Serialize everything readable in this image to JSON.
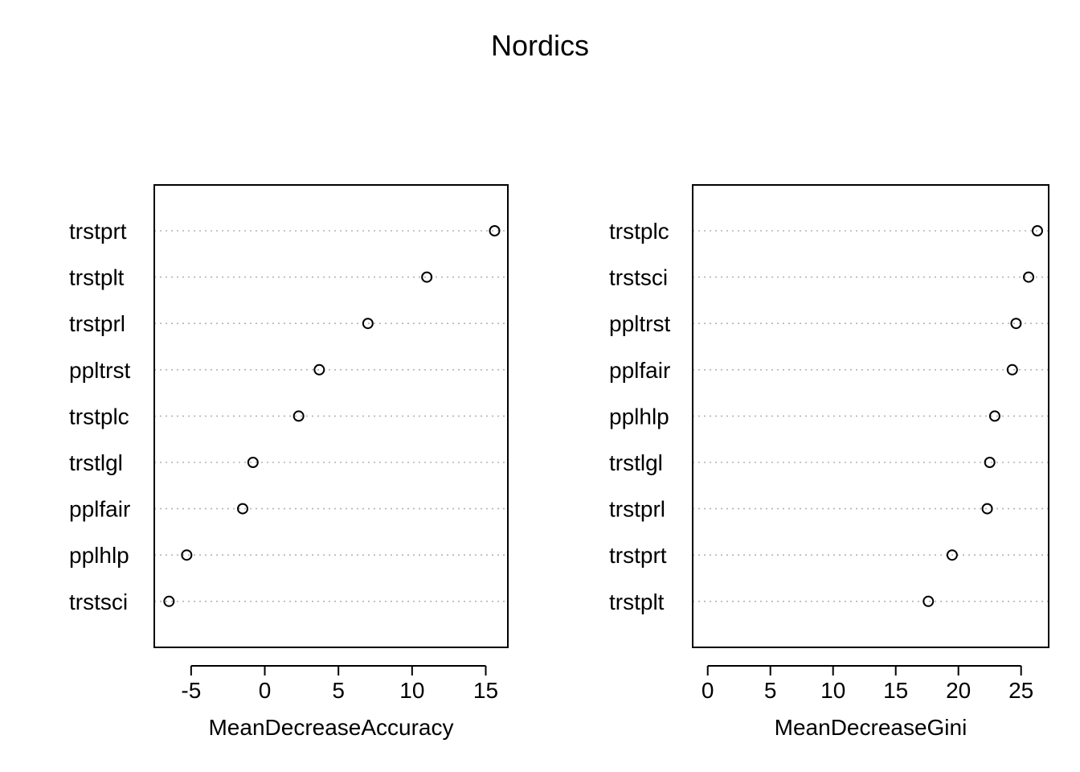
{
  "title": "Nordics",
  "chart_data": [
    {
      "type": "scatter",
      "subtype": "dotchart",
      "xlabel": "MeanDecreaseAccuracy",
      "xlim": [
        -7.5,
        16.5
      ],
      "xticks": [
        -5,
        0,
        5,
        10,
        15
      ],
      "grid": "dotted horizontal",
      "categories": [
        "trstprt",
        "trstplt",
        "trstprl",
        "ppltrst",
        "trstplc",
        "trstlgl",
        "pplfair",
        "pplhlp",
        "trstsci"
      ],
      "values": [
        15.6,
        11.0,
        7.0,
        3.7,
        2.3,
        -0.8,
        -1.5,
        -5.3,
        -6.5
      ]
    },
    {
      "type": "scatter",
      "subtype": "dotchart",
      "xlabel": "MeanDecreaseGini",
      "xlim": [
        -1.2,
        27.2
      ],
      "xticks": [
        0,
        5,
        10,
        15,
        20,
        25
      ],
      "grid": "dotted horizontal",
      "categories": [
        "trstplc",
        "trstsci",
        "ppltrst",
        "pplfair",
        "pplhlp",
        "trstlgl",
        "trstprl",
        "trstprt",
        "trstplt"
      ],
      "values": [
        26.3,
        25.6,
        24.6,
        24.3,
        22.9,
        22.5,
        22.3,
        19.5,
        17.6
      ]
    }
  ]
}
